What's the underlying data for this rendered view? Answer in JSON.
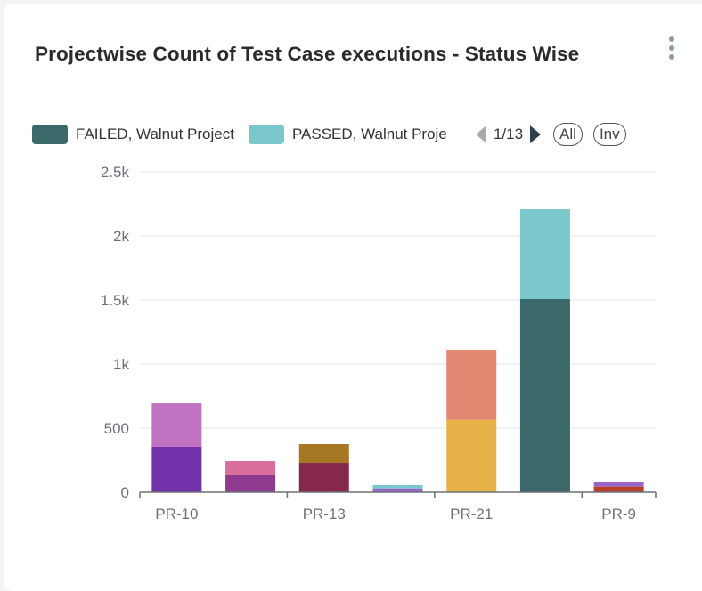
{
  "title": "Projectwise Count of Test Case executions - Status Wise",
  "legend": {
    "items": [
      {
        "label": "FAILED, Walnut Project",
        "color": "#3b6868"
      },
      {
        "label": "PASSED, Walnut Proje",
        "color": "#7ac8cb"
      }
    ],
    "page": "1/13",
    "all_label": "All",
    "inv_label": "Inv"
  },
  "chart_data": {
    "type": "bar",
    "stacked": true,
    "categories": [
      "PR-10",
      "",
      "PR-13",
      "",
      "PR-21",
      "",
      "PR-9"
    ],
    "bars": [
      {
        "segments": [
          {
            "value": 354,
            "color": "#7132aa"
          },
          {
            "value": 340,
            "color": "#c073c1"
          }
        ]
      },
      {
        "segments": [
          {
            "value": 132,
            "color": "#8e3a8f"
          },
          {
            "value": 111,
            "color": "#d86f9a"
          }
        ]
      },
      {
        "segments": [
          {
            "value": 229,
            "color": "#86284d"
          },
          {
            "value": 146,
            "color": "#a67824"
          }
        ]
      },
      {
        "segments": [
          {
            "value": 30,
            "color": "#9a65c8"
          },
          {
            "value": 26,
            "color": "#7ac8cb"
          }
        ]
      },
      {
        "segments": [
          {
            "value": 565,
            "color": "#e8b24a"
          },
          {
            "value": 546,
            "color": "#e28872"
          }
        ]
      },
      {
        "segments": [
          {
            "value": 1507,
            "color": "#3b6868"
          },
          {
            "value": 701,
            "color": "#7ac8cb"
          }
        ]
      },
      {
        "segments": [
          {
            "value": 44,
            "color": "#b83e25"
          },
          {
            "value": 39,
            "color": "#9a65c8"
          }
        ]
      }
    ],
    "yticks": [
      0,
      500,
      1000,
      1500,
      2000,
      2500
    ],
    "ytick_labels": [
      "0",
      "500",
      "1k",
      "1.5k",
      "2k",
      "2.5k"
    ],
    "ylim": [
      0,
      2500
    ],
    "grid": true
  }
}
